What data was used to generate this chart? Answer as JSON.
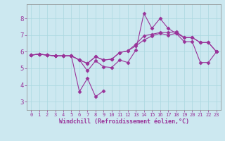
{
  "xlabel": "Windchill (Refroidissement éolien,°C)",
  "background_color": "#cce8f0",
  "line_color": "#993399",
  "xlim": [
    -0.5,
    23.5
  ],
  "ylim": [
    2.5,
    8.85
  ],
  "xticks": [
    0,
    1,
    2,
    3,
    4,
    5,
    6,
    7,
    8,
    9,
    10,
    11,
    12,
    13,
    14,
    15,
    16,
    17,
    18,
    19,
    20,
    21,
    22,
    23
  ],
  "yticks": [
    3,
    4,
    5,
    6,
    7,
    8
  ],
  "series": [
    [
      5.8,
      5.85,
      5.8,
      5.75,
      5.75,
      5.75,
      5.5,
      4.85,
      5.45,
      5.1,
      5.05,
      5.5,
      5.35,
      6.1,
      8.3,
      7.4,
      8.0,
      7.4,
      7.1,
      6.6,
      6.6,
      5.35,
      5.35,
      6.0
    ],
    [
      5.8,
      5.85,
      5.8,
      5.75,
      5.75,
      5.75,
      3.6,
      4.4,
      3.3,
      3.65,
      null,
      null,
      null,
      null,
      null,
      null,
      null,
      null,
      null,
      null,
      null,
      null,
      null,
      null
    ],
    [
      5.8,
      5.85,
      5.8,
      5.75,
      5.75,
      5.75,
      5.5,
      5.3,
      5.7,
      5.5,
      5.55,
      5.95,
      6.05,
      6.35,
      6.7,
      6.95,
      7.1,
      7.0,
      7.1,
      6.85,
      6.85,
      6.55,
      6.55,
      6.0
    ],
    [
      5.8,
      5.85,
      5.8,
      5.75,
      5.75,
      5.75,
      5.5,
      5.3,
      5.7,
      5.5,
      5.55,
      5.95,
      6.05,
      6.45,
      6.95,
      7.05,
      7.15,
      7.15,
      7.2,
      6.85,
      6.85,
      6.55,
      6.55,
      6.0
    ]
  ],
  "marker": "D",
  "markersize": 2.5,
  "linewidth": 0.8,
  "grid_color": "#aad8e0",
  "spine_color": "#888888",
  "xtick_fontsize": 5.0,
  "ytick_fontsize": 6.5,
  "xlabel_fontsize": 6.0
}
